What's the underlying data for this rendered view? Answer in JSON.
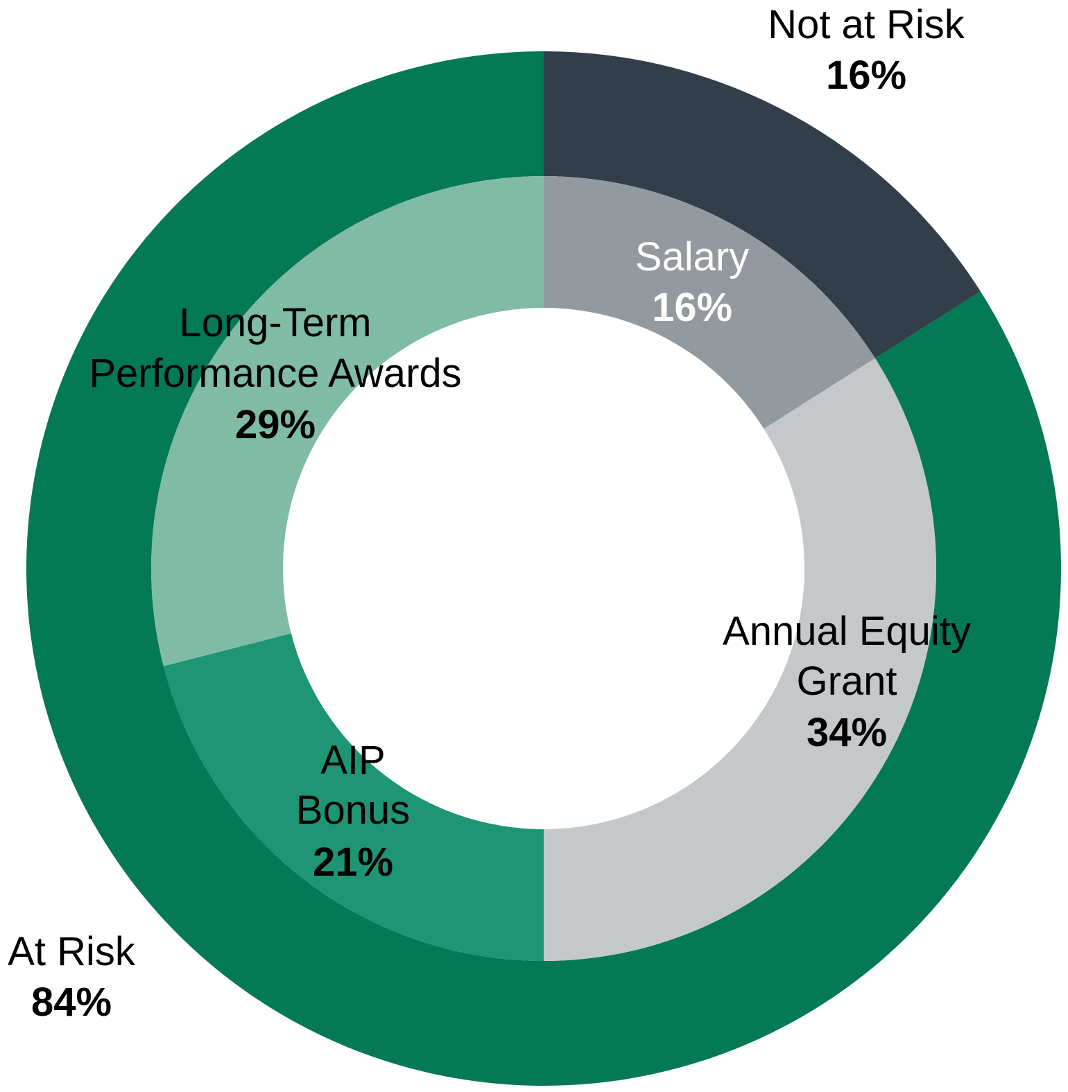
{
  "chart_data": {
    "type": "pie",
    "subtype": "nested-donut",
    "outer_ring": [
      {
        "name": "Not at Risk",
        "value": 16,
        "label": "16%",
        "color": "#323e4a"
      },
      {
        "name": "At Risk",
        "value": 84,
        "label": "84%",
        "color": "#037955"
      }
    ],
    "inner_ring": [
      {
        "name": "Salary",
        "value": 16,
        "label": "16%",
        "color": "#939a9f"
      },
      {
        "name": "Annual Equity Grant",
        "value": 34,
        "label": "34%",
        "color": "#c5c8ca"
      },
      {
        "name": "AIP Bonus",
        "value": 21,
        "label": "21%",
        "color": "#1e9574"
      },
      {
        "name": "Long-Term Performance Awards",
        "value": 29,
        "label": "29%",
        "color": "#80bba6"
      }
    ]
  },
  "labels": {
    "not_at_risk": {
      "line1": "Not at Risk",
      "value": "16%"
    },
    "at_risk": {
      "line1": "At Risk",
      "value": "84%"
    },
    "salary": {
      "line1": "Salary",
      "value": "16%"
    },
    "annual_equity": {
      "line1": "Annual Equity",
      "line2": "Grant",
      "value": "34%"
    },
    "aip_bonus": {
      "line1": "AIP",
      "line2": "Bonus",
      "value": "21%"
    },
    "long_term": {
      "line1": "Long-Term",
      "line2": "Performance Awards",
      "value": "29%"
    }
  }
}
